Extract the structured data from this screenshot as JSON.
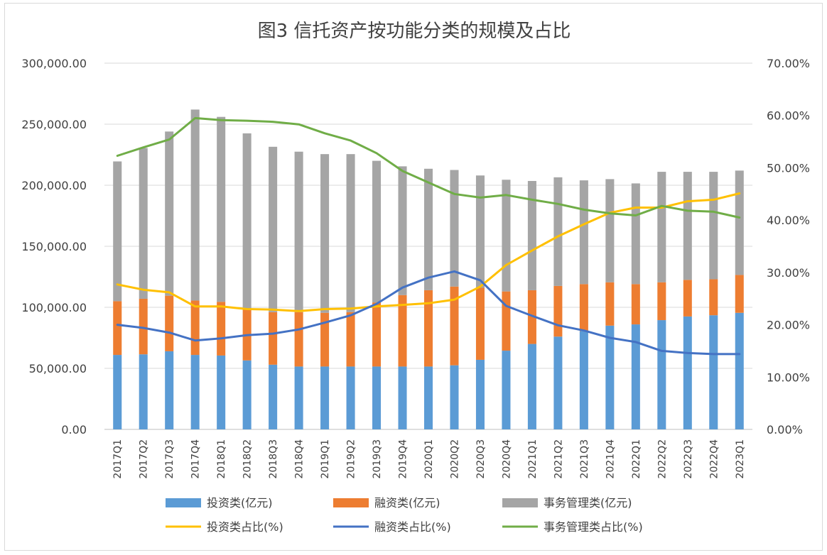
{
  "chart_data": {
    "type": "bar",
    "title": "图3  信托资产按功能分类的规模及占比",
    "categories": [
      "2017Q1",
      "2017Q2",
      "2017Q3",
      "2017Q4",
      "2018Q1",
      "2018Q2",
      "2018Q3",
      "2018Q4",
      "2019Q1",
      "2019Q2",
      "2019Q3",
      "2019Q4",
      "2020Q1",
      "2020Q2",
      "2020Q3",
      "2020Q4",
      "2021Q1",
      "2021Q2",
      "2021Q3",
      "2021Q4",
      "2022Q1",
      "2022Q2",
      "2022Q3",
      "2022Q4",
      "2023Q1"
    ],
    "y_left": {
      "range": [
        0,
        300000
      ],
      "ticks": [
        0,
        50000,
        100000,
        150000,
        200000,
        250000,
        300000
      ],
      "tick_labels": [
        "0.00",
        "50,000.00",
        "100,000.00",
        "150,000.00",
        "200,000.00",
        "250,000.00",
        "300,000.00"
      ]
    },
    "y_right": {
      "range": [
        0,
        0.7
      ],
      "ticks": [
        0,
        0.1,
        0.2,
        0.3,
        0.4,
        0.5,
        0.6,
        0.7
      ],
      "tick_labels": [
        "0.00%",
        "10.00%",
        "20.00%",
        "30.00%",
        "40.00%",
        "50.00%",
        "60.00%",
        "70.00%"
      ]
    },
    "stacked_bars": [
      {
        "name": "投资类(亿元)",
        "color": "#5b9bd5",
        "values": [
          61000,
          61500,
          64000,
          61000,
          60500,
          56500,
          53000,
          51500,
          51500,
          51500,
          51500,
          51500,
          51500,
          52500,
          57000,
          64500,
          70000,
          76000,
          80500,
          85000,
          86000,
          89500,
          92500,
          93500,
          95500
        ]
      },
      {
        "name": "融资类(亿元)",
        "color": "#ed7d31",
        "values": [
          44000,
          45500,
          45500,
          44500,
          44000,
          42500,
          43000,
          44500,
          44000,
          44500,
          52500,
          58500,
          62500,
          64500,
          59000,
          48500,
          44000,
          41500,
          38500,
          35500,
          33000,
          31000,
          30000,
          29500,
          31000
        ]
      },
      {
        "name": "事务管理类(亿元)",
        "color": "#a5a5a5",
        "values": [
          114500,
          123500,
          134500,
          156500,
          151500,
          143500,
          135500,
          131500,
          130000,
          129500,
          116000,
          105500,
          99500,
          95500,
          92000,
          91500,
          89500,
          89000,
          85000,
          84500,
          82500,
          90500,
          88500,
          88000,
          85500
        ]
      }
    ],
    "lines": [
      {
        "name": "投资类占比(%)",
        "color": "#ffc000",
        "values": [
          0.277,
          0.267,
          0.262,
          0.235,
          0.235,
          0.23,
          0.229,
          0.226,
          0.23,
          0.231,
          0.235,
          0.238,
          0.241,
          0.248,
          0.273,
          0.314,
          0.342,
          0.369,
          0.392,
          0.414,
          0.424,
          0.424,
          0.436,
          0.439,
          0.451
        ]
      },
      {
        "name": "融资类占比(%)",
        "color": "#4472c4",
        "values": [
          0.2,
          0.194,
          0.185,
          0.17,
          0.174,
          0.18,
          0.183,
          0.191,
          0.204,
          0.218,
          0.24,
          0.271,
          0.29,
          0.302,
          0.285,
          0.236,
          0.217,
          0.199,
          0.189,
          0.175,
          0.167,
          0.15,
          0.146,
          0.144,
          0.144
        ]
      },
      {
        "name": "事务管理类占比(%)",
        "color": "#70ad47",
        "values": [
          0.523,
          0.539,
          0.554,
          0.595,
          0.591,
          0.59,
          0.588,
          0.583,
          0.566,
          0.552,
          0.528,
          0.494,
          0.472,
          0.45,
          0.443,
          0.448,
          0.439,
          0.431,
          0.42,
          0.413,
          0.409,
          0.427,
          0.418,
          0.416,
          0.405
        ]
      }
    ],
    "grid": true,
    "legend_position": "bottom"
  }
}
